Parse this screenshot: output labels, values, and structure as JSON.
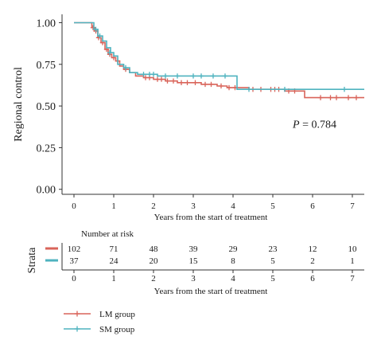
{
  "colors": {
    "lm": "#d9645a",
    "sm": "#4fb3bf",
    "axis": "#333333"
  },
  "chart_data": [
    {
      "type": "line",
      "chart_kind": "kaplan-meier step curve",
      "ylabel": "Regional control",
      "xlabel": "Years from the start of treatment",
      "xlim": [
        -0.3,
        7.3
      ],
      "ylim": [
        -0.03,
        1.05
      ],
      "x_ticks": [
        0,
        1,
        2,
        3,
        4,
        5,
        6,
        7
      ],
      "y_ticks": [
        0.0,
        0.25,
        0.5,
        0.75,
        1.0
      ],
      "y_tick_labels": [
        "0.00",
        "0.25",
        "0.50",
        "0.75",
        "1.00"
      ],
      "annotation": {
        "prefix": "P",
        "text": " = 0.784",
        "x": 5.5,
        "y": 0.37
      },
      "series": [
        {
          "name": "LM group",
          "color_key": "lm",
          "steps": [
            [
              0,
              1.0
            ],
            [
              0.45,
              0.97
            ],
            [
              0.52,
              0.95
            ],
            [
              0.6,
              0.91
            ],
            [
              0.68,
              0.88
            ],
            [
              0.78,
              0.84
            ],
            [
              0.86,
              0.81
            ],
            [
              0.95,
              0.79
            ],
            [
              1.05,
              0.77
            ],
            [
              1.15,
              0.74
            ],
            [
              1.25,
              0.72
            ],
            [
              1.4,
              0.7
            ],
            [
              1.55,
              0.68
            ],
            [
              1.75,
              0.67
            ],
            [
              2.0,
              0.66
            ],
            [
              2.3,
              0.65
            ],
            [
              2.6,
              0.64
            ],
            [
              3.2,
              0.63
            ],
            [
              3.6,
              0.62
            ],
            [
              3.85,
              0.61
            ],
            [
              4.4,
              0.6
            ],
            [
              5.3,
              0.59
            ],
            [
              5.8,
              0.55
            ],
            [
              7.3,
              0.55
            ]
          ],
          "censors": [
            [
              0.48,
              0.97
            ],
            [
              0.55,
              0.95
            ],
            [
              0.62,
              0.91
            ],
            [
              0.72,
              0.88
            ],
            [
              0.82,
              0.84
            ],
            [
              0.9,
              0.81
            ],
            [
              1.0,
              0.79
            ],
            [
              1.1,
              0.77
            ],
            [
              1.3,
              0.72
            ],
            [
              1.8,
              0.67
            ],
            [
              1.9,
              0.67
            ],
            [
              2.1,
              0.66
            ],
            [
              2.2,
              0.66
            ],
            [
              2.35,
              0.65
            ],
            [
              2.5,
              0.65
            ],
            [
              2.7,
              0.64
            ],
            [
              2.85,
              0.64
            ],
            [
              3.05,
              0.64
            ],
            [
              3.3,
              0.63
            ],
            [
              3.45,
              0.63
            ],
            [
              3.7,
              0.62
            ],
            [
              3.9,
              0.61
            ],
            [
              4.05,
              0.61
            ],
            [
              4.5,
              0.6
            ],
            [
              4.7,
              0.6
            ],
            [
              4.95,
              0.6
            ],
            [
              5.05,
              0.6
            ],
            [
              5.15,
              0.6
            ],
            [
              5.4,
              0.59
            ],
            [
              5.55,
              0.59
            ],
            [
              6.2,
              0.55
            ],
            [
              6.45,
              0.55
            ],
            [
              6.6,
              0.55
            ],
            [
              6.9,
              0.55
            ],
            [
              7.1,
              0.55
            ]
          ]
        },
        {
          "name": "SM group",
          "color_key": "sm",
          "steps": [
            [
              0,
              1.0
            ],
            [
              0.5,
              0.96
            ],
            [
              0.6,
              0.92
            ],
            [
              0.72,
              0.89
            ],
            [
              0.82,
              0.85
            ],
            [
              0.92,
              0.82
            ],
            [
              1.0,
              0.8
            ],
            [
              1.1,
              0.75
            ],
            [
              1.25,
              0.73
            ],
            [
              1.4,
              0.7
            ],
            [
              1.6,
              0.69
            ],
            [
              2.1,
              0.68
            ],
            [
              4.1,
              0.6
            ],
            [
              7.3,
              0.6
            ]
          ],
          "censors": [
            [
              0.55,
              0.96
            ],
            [
              0.65,
              0.92
            ],
            [
              0.9,
              0.82
            ],
            [
              1.3,
              0.73
            ],
            [
              1.75,
              0.69
            ],
            [
              1.9,
              0.69
            ],
            [
              2.0,
              0.69
            ],
            [
              2.3,
              0.68
            ],
            [
              2.6,
              0.68
            ],
            [
              3.0,
              0.68
            ],
            [
              3.2,
              0.68
            ],
            [
              3.5,
              0.68
            ],
            [
              3.8,
              0.68
            ],
            [
              4.4,
              0.6
            ],
            [
              5.3,
              0.6
            ],
            [
              6.8,
              0.6
            ]
          ]
        }
      ]
    },
    {
      "type": "table",
      "title": "Number at risk",
      "row_label": "Strata",
      "xlabel": "Years from the start of treatment",
      "x_ticks": [
        0,
        1,
        2,
        3,
        4,
        5,
        6,
        7
      ],
      "rows": [
        {
          "name": "LM group",
          "color_key": "lm",
          "values": [
            "102",
            "71",
            "48",
            "39",
            "29",
            "23",
            "12",
            "10"
          ]
        },
        {
          "name": "SM group",
          "color_key": "sm",
          "values": [
            "37",
            "24",
            "20",
            "15",
            "8",
            "5",
            "2",
            "1"
          ]
        }
      ]
    }
  ],
  "legend": {
    "items": [
      {
        "label": "LM group",
        "color_key": "lm"
      },
      {
        "label": "SM group",
        "color_key": "sm"
      }
    ]
  }
}
